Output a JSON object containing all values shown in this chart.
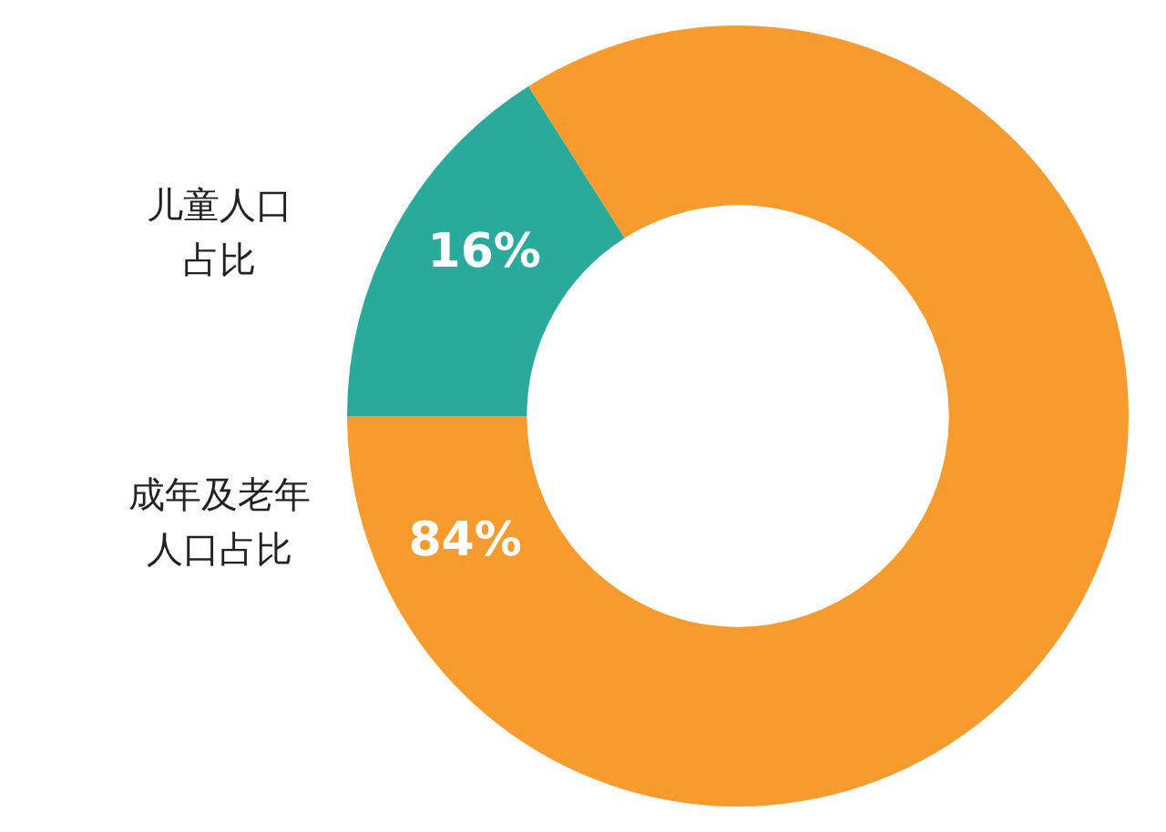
{
  "chart_data": {
    "type": "donut",
    "categories": [
      "儿童人口占比",
      "成年及老年人口占比"
    ],
    "values": [
      16,
      84
    ],
    "colors": [
      "#2aaa9a",
      "#f89b2e"
    ],
    "value_labels": [
      "16%",
      "84%"
    ],
    "legend": false
  }
}
